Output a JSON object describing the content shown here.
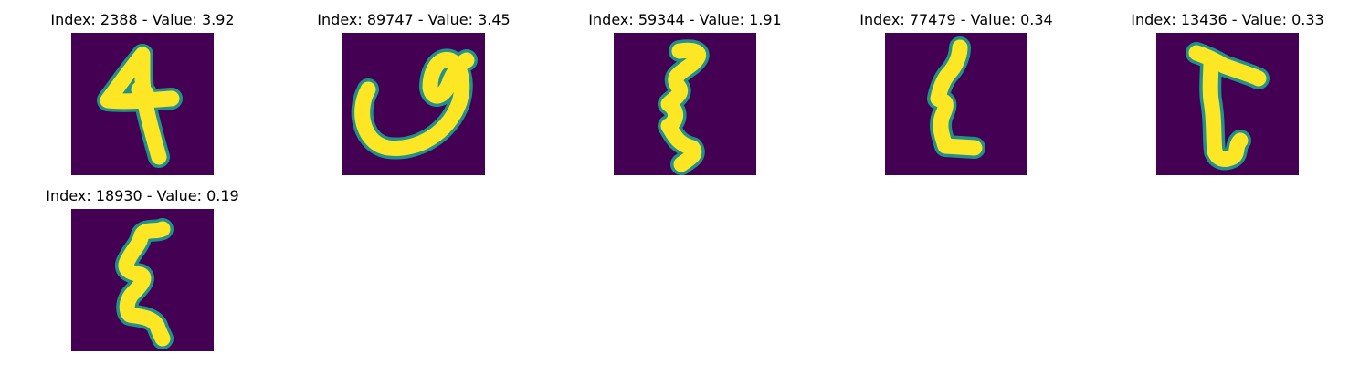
{
  "colors": {
    "background": "#440154",
    "stroke": "#fde725",
    "edge": "#21918c"
  },
  "chart_data": {
    "type": "image_grid",
    "panels": [
      {
        "index": 2388,
        "value": 3.92,
        "title": "Index: 2388 - Value: 3.92",
        "glyph": "4"
      },
      {
        "index": 89747,
        "value": 3.45,
        "title": "Index: 89747 - Value: 3.45",
        "glyph": "loop"
      },
      {
        "index": 59344,
        "value": 1.91,
        "title": "Index: 59344 - Value: 1.91",
        "glyph": "zigzag"
      },
      {
        "index": 77479,
        "value": 0.34,
        "title": "Index: 77479 - Value: 0.34",
        "glyph": "zigzag-thin"
      },
      {
        "index": 13436,
        "value": 0.33,
        "title": "Index: 13436 - Value: 0.33",
        "glyph": "t-shape"
      },
      {
        "index": 18930,
        "value": 0.19,
        "title": "Index: 18930 - Value: 0.19",
        "glyph": "zigzag-curly"
      }
    ]
  }
}
